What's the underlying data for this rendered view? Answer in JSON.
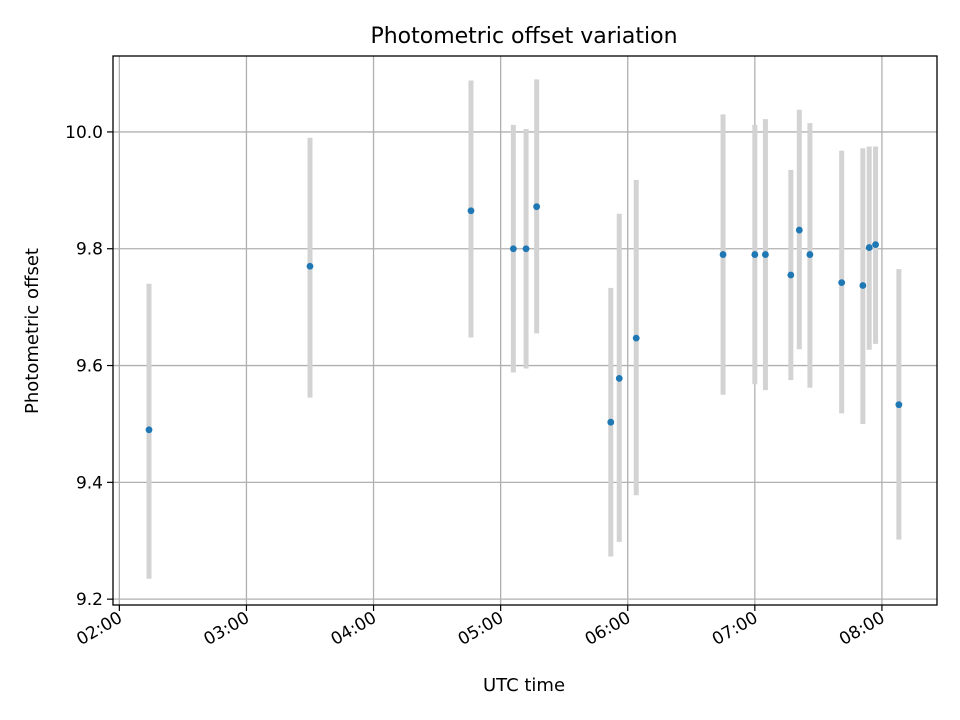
{
  "chart_data": {
    "type": "scatter",
    "title": "Photometric offset variation",
    "xlabel": "UTC time",
    "ylabel": "Photometric offset",
    "x_unit": "UTC time (HH:MM)",
    "xlim": [
      "01:57",
      "08:26"
    ],
    "ylim": [
      9.19,
      10.13
    ],
    "x_ticks": [
      "02:00",
      "03:00",
      "04:00",
      "05:00",
      "06:00",
      "07:00",
      "08:00"
    ],
    "y_ticks": [
      9.2,
      9.4,
      9.6,
      9.8,
      10.0
    ],
    "y_tick_labels": [
      "9.2",
      "9.4",
      "9.6",
      "9.8",
      "10.0"
    ],
    "grid": true,
    "point_color": "#1f77b4",
    "errorbar_color": "#d3d3d3",
    "points": [
      {
        "x": "02:14",
        "y": 9.49,
        "ylow": 9.235,
        "yhigh": 9.74
      },
      {
        "x": "03:30",
        "y": 9.77,
        "ylow": 9.545,
        "yhigh": 9.99
      },
      {
        "x": "04:46",
        "y": 9.865,
        "ylow": 9.648,
        "yhigh": 10.088
      },
      {
        "x": "05:06",
        "y": 9.8,
        "ylow": 9.588,
        "yhigh": 10.012
      },
      {
        "x": "05:12",
        "y": 9.8,
        "ylow": 9.595,
        "yhigh": 10.005
      },
      {
        "x": "05:17",
        "y": 9.872,
        "ylow": 9.655,
        "yhigh": 10.09
      },
      {
        "x": "05:52",
        "y": 9.503,
        "ylow": 9.273,
        "yhigh": 9.733
      },
      {
        "x": "05:56",
        "y": 9.578,
        "ylow": 9.298,
        "yhigh": 9.86
      },
      {
        "x": "06:04",
        "y": 9.647,
        "ylow": 9.378,
        "yhigh": 9.918
      },
      {
        "x": "06:45",
        "y": 9.79,
        "ylow": 9.55,
        "yhigh": 10.03
      },
      {
        "x": "07:00",
        "y": 9.79,
        "ylow": 9.568,
        "yhigh": 10.012
      },
      {
        "x": "07:05",
        "y": 9.79,
        "ylow": 9.558,
        "yhigh": 10.022
      },
      {
        "x": "07:17",
        "y": 9.755,
        "ylow": 9.575,
        "yhigh": 9.935
      },
      {
        "x": "07:21",
        "y": 9.832,
        "ylow": 9.628,
        "yhigh": 10.038
      },
      {
        "x": "07:26",
        "y": 9.79,
        "ylow": 9.562,
        "yhigh": 10.015
      },
      {
        "x": "07:41",
        "y": 9.742,
        "ylow": 9.518,
        "yhigh": 9.968
      },
      {
        "x": "07:51",
        "y": 9.737,
        "ylow": 9.5,
        "yhigh": 9.972
      },
      {
        "x": "07:54",
        "y": 9.802,
        "ylow": 9.627,
        "yhigh": 9.975
      },
      {
        "x": "07:57",
        "y": 9.807,
        "ylow": 9.637,
        "yhigh": 9.975
      },
      {
        "x": "08:08",
        "y": 9.533,
        "ylow": 9.302,
        "yhigh": 9.765
      }
    ]
  }
}
